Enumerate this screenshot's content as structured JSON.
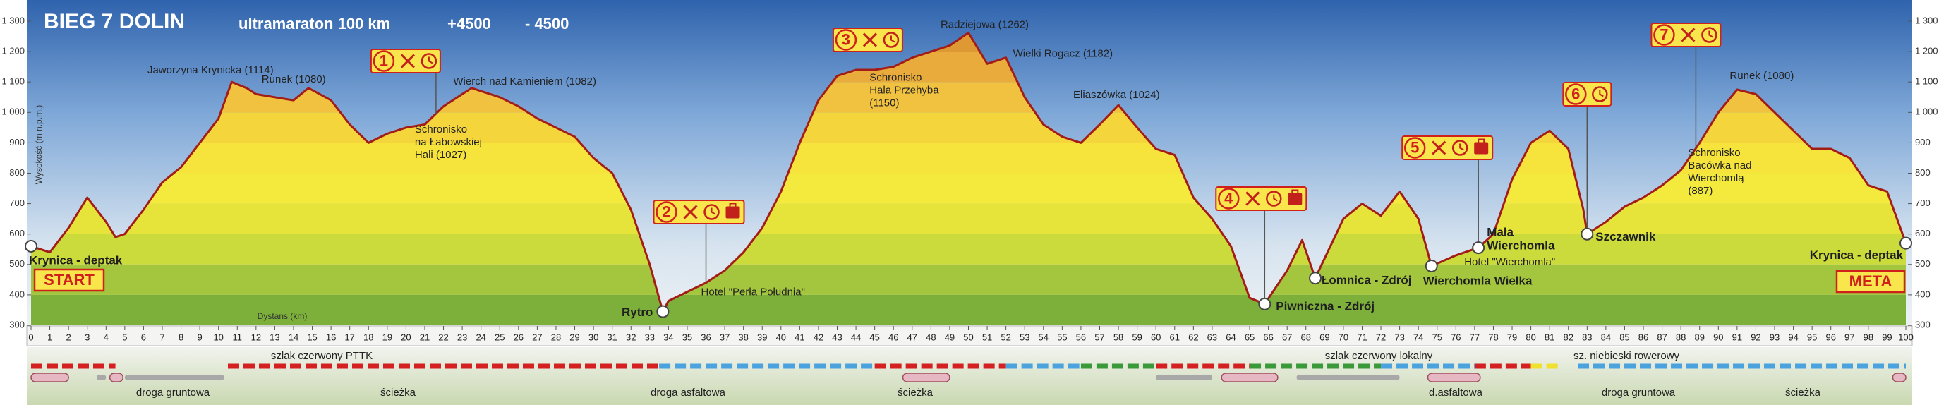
{
  "chart_data": {
    "type": "area",
    "title": "BIEG 7 DOLIN",
    "subtitle": "ultramaraton 100 km",
    "ascent": "+4500",
    "descent": "- 4500",
    "ylabel": "Wysokość (m n.p.m.)",
    "xlabel": "Dystans (km)",
    "color": "#a31d18",
    "x": [
      0,
      1,
      2,
      3,
      4,
      4.5,
      5,
      6,
      7,
      8,
      9,
      10,
      10.7,
      11.5,
      12,
      13,
      14,
      14.8,
      16,
      17,
      18,
      19,
      20,
      21,
      22,
      23,
      23.5,
      25,
      26,
      27,
      28,
      29,
      30,
      31,
      32,
      33,
      33.7,
      34,
      35,
      36,
      37,
      38,
      39,
      40,
      41,
      42,
      43,
      44,
      45,
      46,
      47,
      48,
      49,
      50,
      51,
      52,
      53,
      54,
      55,
      56,
      57,
      58,
      59,
      60,
      61,
      62,
      63,
      64,
      65,
      65.8,
      67,
      67.8,
      68.5,
      69,
      70,
      71,
      72,
      73,
      74,
      74.7,
      76,
      77.2,
      78,
      79,
      80,
      81,
      82,
      82.8,
      83,
      84,
      85,
      86,
      87,
      88,
      88.8,
      89,
      90,
      91,
      92,
      93,
      94,
      95,
      96,
      97,
      98,
      99,
      100
    ],
    "values": [
      560,
      540,
      620,
      720,
      640,
      590,
      600,
      680,
      770,
      820,
      900,
      980,
      1100,
      1080,
      1060,
      1050,
      1040,
      1080,
      1040,
      960,
      900,
      930,
      950,
      960,
      1020,
      1060,
      1080,
      1050,
      1020,
      980,
      950,
      920,
      850,
      800,
      680,
      500,
      345,
      380,
      410,
      440,
      480,
      540,
      620,
      740,
      900,
      1040,
      1120,
      1140,
      1140,
      1150,
      1180,
      1200,
      1220,
      1262,
      1160,
      1180,
      1050,
      960,
      920,
      900,
      960,
      1024,
      950,
      880,
      860,
      720,
      650,
      560,
      390,
      370,
      480,
      580,
      455,
      520,
      650,
      700,
      660,
      740,
      650,
      495,
      530,
      555,
      600,
      780,
      900,
      940,
      880,
      680,
      600,
      640,
      690,
      720,
      760,
      810,
      882,
      900,
      1000,
      1075,
      1060,
      1000,
      940,
      880,
      880,
      850,
      760,
      740,
      570
    ],
    "xlim": [
      0,
      100
    ],
    "xticks": [
      0,
      1,
      2,
      3,
      4,
      5,
      6,
      7,
      8,
      9,
      10,
      11,
      12,
      13,
      14,
      15,
      16,
      17,
      18,
      19,
      20,
      21,
      22,
      23,
      24,
      25,
      26,
      27,
      28,
      29,
      30,
      31,
      32,
      33,
      34,
      35,
      36,
      37,
      38,
      39,
      40,
      41,
      42,
      43,
      44,
      45,
      46,
      47,
      48,
      49,
      50,
      51,
      52,
      53,
      54,
      55,
      56,
      57,
      58,
      59,
      60,
      61,
      62,
      63,
      64,
      65,
      66,
      67,
      68,
      69,
      70,
      71,
      72,
      73,
      74,
      75,
      76,
      77,
      78,
      79,
      80,
      81,
      82,
      83,
      84,
      85,
      86,
      87,
      88,
      89,
      90,
      91,
      92,
      93,
      94,
      95,
      96,
      97,
      98,
      99,
      100
    ],
    "ylim": [
      300,
      1300
    ],
    "yticks": [
      300,
      400,
      500,
      600,
      700,
      800,
      900,
      {
        "value": 1000,
        "label": "1 000"
      },
      {
        "value": 1100,
        "label": "1 100"
      },
      {
        "value": 1200,
        "label": "1 200"
      },
      {
        "value": 1300,
        "label": "1 300"
      }
    ],
    "annotations": [
      {
        "lines": [
          "Jaworzyna Krynicka (1114)"
        ],
        "x": 10.7
      },
      {
        "lines": [
          "Runek (1080)"
        ],
        "x": 14.8
      },
      {
        "lines": [
          "Wierch nad Kamieniem (1082)"
        ],
        "x": 23.5
      },
      {
        "lines": [
          "Schronisko",
          "na Łabowskiej",
          "Hali  (1027)"
        ],
        "x": 21.6
      },
      {
        "lines": [
          "Radziejowa (1262)"
        ],
        "x": 50
      },
      {
        "lines": [
          "Wielki Rogacz (1182)"
        ],
        "x": 52
      },
      {
        "lines": [
          "Schronisko",
          "Hala Przehyba",
          "(1150)"
        ],
        "x": 46
      },
      {
        "lines": [
          "Eliaszówka (1024)"
        ],
        "x": 58
      },
      {
        "lines": [
          "Schronisko",
          "Bacówka nad",
          "Wierchomlą",
          "(887)"
        ],
        "x": 88.8
      },
      {
        "lines": [
          "Runek (1080)"
        ],
        "x": 91
      }
    ],
    "places": [
      {
        "lines": [
          "Krynica - deptak"
        ],
        "x": 0
      },
      {
        "lines": [
          "Rytro"
        ],
        "x": 33.7
      },
      {
        "lines": [
          "Hotel \"Perła Południa\""
        ],
        "x": 36
      },
      {
        "lines": [
          "Piwniczna - Zdrój"
        ],
        "x": 65.8
      },
      {
        "lines": [
          "Łomnica - Zdrój"
        ],
        "x": 68.5
      },
      {
        "lines": [
          "Wierchomla Wielka"
        ],
        "x": 74.7
      },
      {
        "lines": [
          "Mała",
          "Wierchomla"
        ],
        "x": 77.2
      },
      {
        "lines": [
          "Hotel  \"Wierchomla\""
        ],
        "x": 77.2
      },
      {
        "lines": [
          "Szczawnik"
        ],
        "x": 83
      },
      {
        "lines": [
          "Krynica - deptak"
        ],
        "x": 100
      }
    ],
    "checkpoints": [
      {
        "label": "1",
        "x": 21.6
      },
      {
        "label": "2",
        "x": 36
      },
      {
        "label": "3",
        "x": 45.5
      },
      {
        "label": "4",
        "x": 65.8
      },
      {
        "label": "5",
        "x": 77.2
      },
      {
        "label": "6",
        "x": 83
      },
      {
        "label": "7",
        "x": 88.8
      }
    ],
    "start_label": "START",
    "finish_label": "META",
    "trail_labels": [
      "szlak czerwony PTTK",
      "szlak czerwony lokalny",
      "sz. niebieski rowerowy"
    ],
    "surface_labels": [
      "droga gruntowa",
      "ścieżka",
      "droga asfaltowa",
      "ścieżka",
      "d.asfaltowa",
      "droga gruntowa",
      "ścieżka"
    ]
  }
}
